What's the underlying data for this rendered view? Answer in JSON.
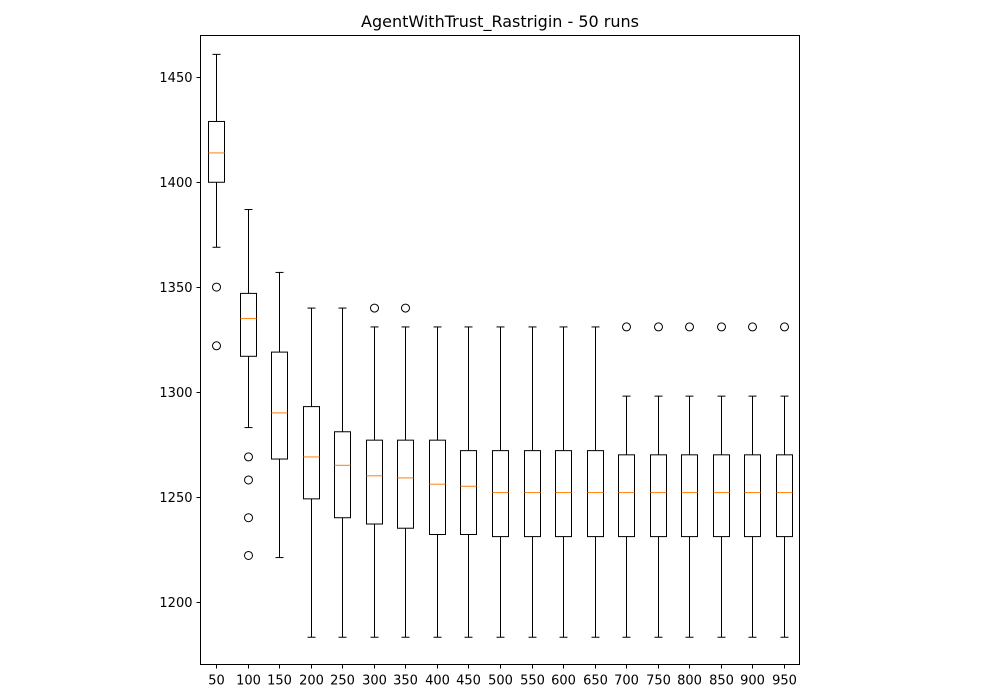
{
  "chart_data": {
    "type": "boxplot",
    "title": "AgentWithTrust_Rastrigin - 50 runs",
    "xlabel": "",
    "ylabel": "",
    "ylim": [
      1170,
      1470
    ],
    "yticks": [
      1200,
      1250,
      1300,
      1350,
      1400,
      1450
    ],
    "grid": false,
    "colors": {
      "box": "#000000",
      "median": "#ff7f0e",
      "flier": "#000000",
      "background": "#ffffff"
    },
    "boxes": [
      {
        "label": "50",
        "whisker_low": 1369,
        "q1": 1400,
        "median": 1414,
        "q3": 1429,
        "whisker_high": 1461,
        "fliers": [
          1350,
          1322
        ]
      },
      {
        "label": "100",
        "whisker_low": 1283,
        "q1": 1317,
        "median": 1335,
        "q3": 1347,
        "whisker_high": 1387,
        "fliers": [
          1269,
          1258,
          1240,
          1222
        ]
      },
      {
        "label": "150",
        "whisker_low": 1221,
        "q1": 1268,
        "median": 1290,
        "q3": 1319,
        "whisker_high": 1357,
        "fliers": []
      },
      {
        "label": "200",
        "whisker_low": 1183,
        "q1": 1249,
        "median": 1269,
        "q3": 1293,
        "whisker_high": 1340,
        "fliers": []
      },
      {
        "label": "250",
        "whisker_low": 1183,
        "q1": 1240,
        "median": 1265,
        "q3": 1281,
        "whisker_high": 1340,
        "fliers": []
      },
      {
        "label": "300",
        "whisker_low": 1183,
        "q1": 1237,
        "median": 1260,
        "q3": 1277,
        "whisker_high": 1331,
        "fliers": [
          1340
        ]
      },
      {
        "label": "350",
        "whisker_low": 1183,
        "q1": 1235,
        "median": 1259,
        "q3": 1277,
        "whisker_high": 1331,
        "fliers": [
          1340
        ]
      },
      {
        "label": "400",
        "whisker_low": 1183,
        "q1": 1232,
        "median": 1256,
        "q3": 1277,
        "whisker_high": 1331,
        "fliers": []
      },
      {
        "label": "450",
        "whisker_low": 1183,
        "q1": 1232,
        "median": 1255,
        "q3": 1272,
        "whisker_high": 1331,
        "fliers": []
      },
      {
        "label": "500",
        "whisker_low": 1183,
        "q1": 1231,
        "median": 1252,
        "q3": 1272,
        "whisker_high": 1331,
        "fliers": []
      },
      {
        "label": "550",
        "whisker_low": 1183,
        "q1": 1231,
        "median": 1252,
        "q3": 1272,
        "whisker_high": 1331,
        "fliers": []
      },
      {
        "label": "600",
        "whisker_low": 1183,
        "q1": 1231,
        "median": 1252,
        "q3": 1272,
        "whisker_high": 1331,
        "fliers": []
      },
      {
        "label": "650",
        "whisker_low": 1183,
        "q1": 1231,
        "median": 1252,
        "q3": 1272,
        "whisker_high": 1331,
        "fliers": []
      },
      {
        "label": "700",
        "whisker_low": 1183,
        "q1": 1231,
        "median": 1252,
        "q3": 1270,
        "whisker_high": 1298,
        "fliers": [
          1331
        ]
      },
      {
        "label": "750",
        "whisker_low": 1183,
        "q1": 1231,
        "median": 1252,
        "q3": 1270,
        "whisker_high": 1298,
        "fliers": [
          1331
        ]
      },
      {
        "label": "800",
        "whisker_low": 1183,
        "q1": 1231,
        "median": 1252,
        "q3": 1270,
        "whisker_high": 1298,
        "fliers": [
          1331
        ]
      },
      {
        "label": "850",
        "whisker_low": 1183,
        "q1": 1231,
        "median": 1252,
        "q3": 1270,
        "whisker_high": 1298,
        "fliers": [
          1331
        ]
      },
      {
        "label": "900",
        "whisker_low": 1183,
        "q1": 1231,
        "median": 1252,
        "q3": 1270,
        "whisker_high": 1298,
        "fliers": [
          1331
        ]
      },
      {
        "label": "950",
        "whisker_low": 1183,
        "q1": 1231,
        "median": 1252,
        "q3": 1270,
        "whisker_high": 1298,
        "fliers": [
          1331
        ]
      }
    ]
  }
}
